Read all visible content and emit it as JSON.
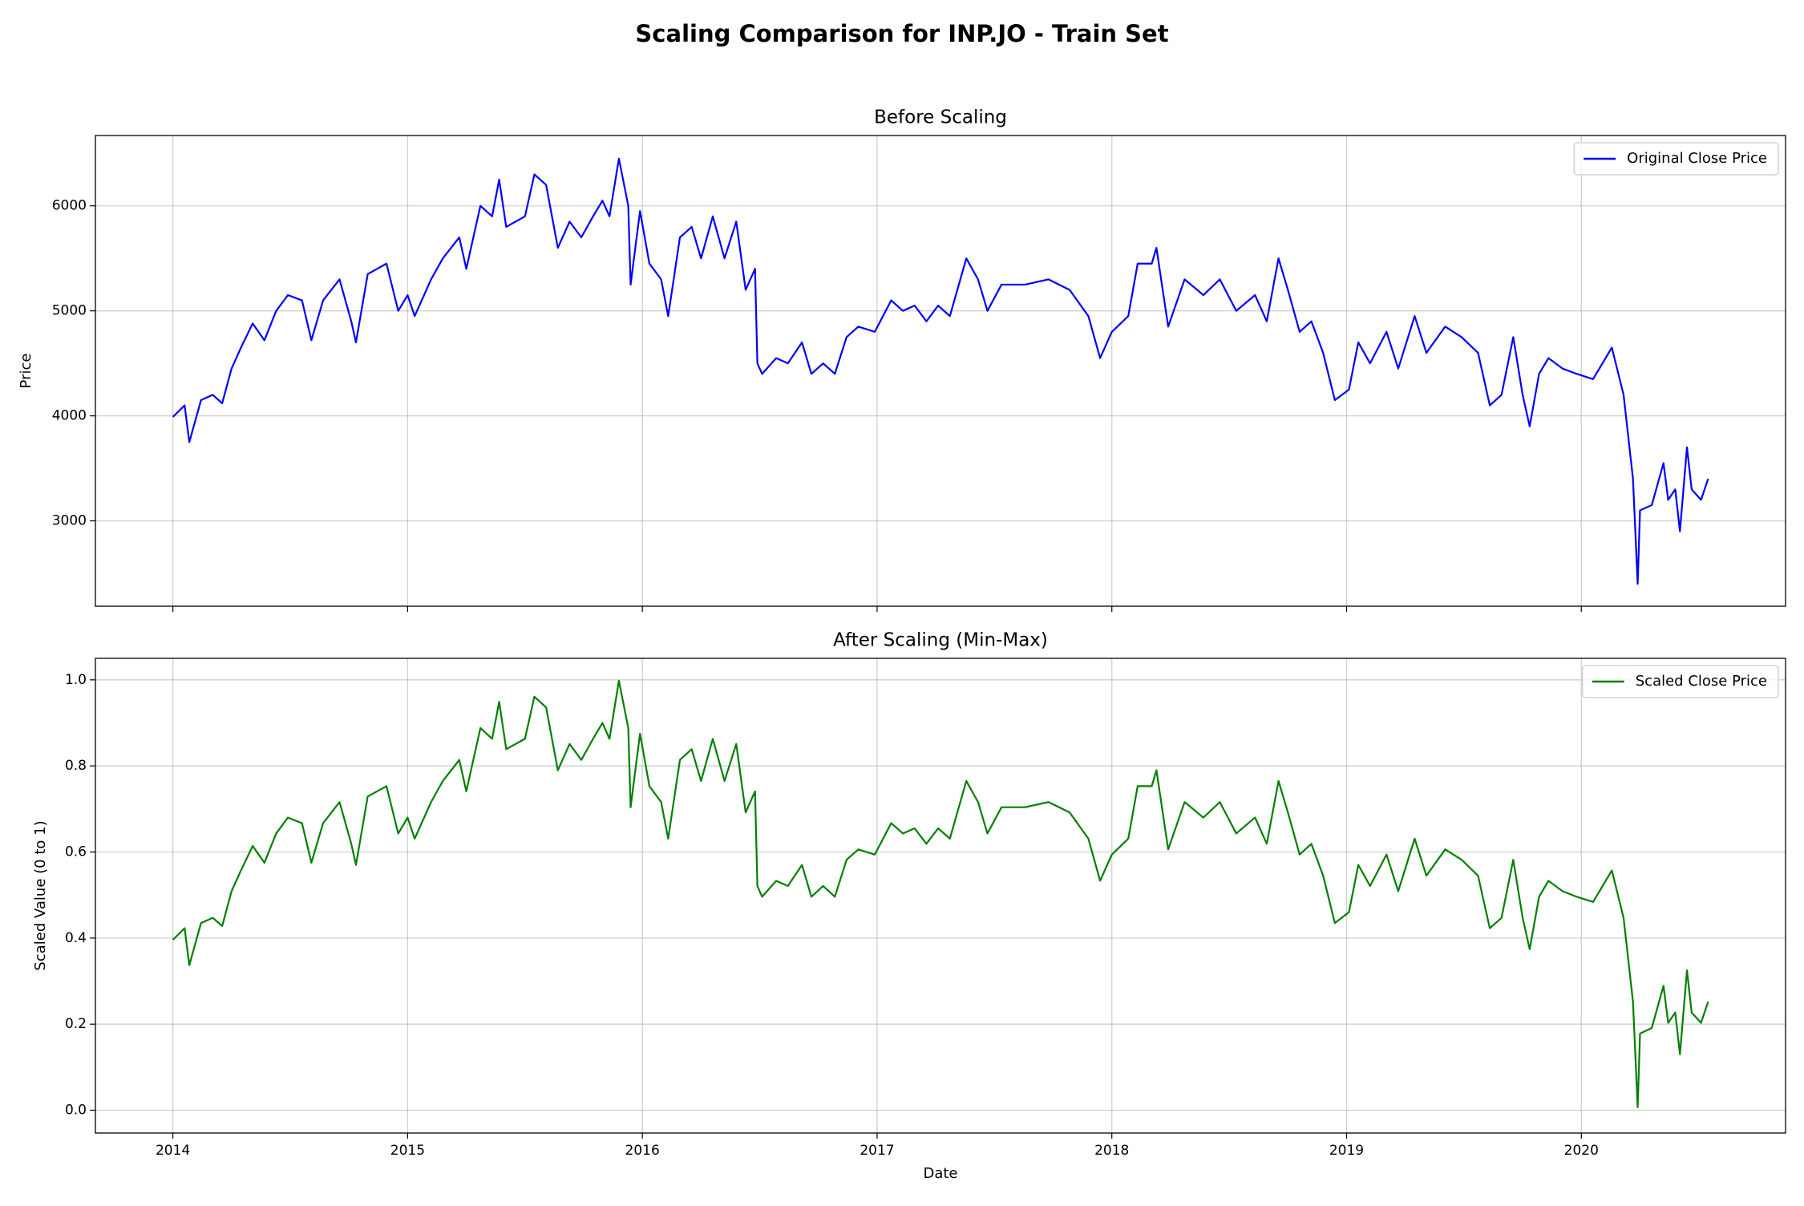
{
  "title": "Scaling Comparison for INP.JO - Train Set",
  "chart_data": [
    {
      "type": "line",
      "title": "Before Scaling",
      "ylabel": "Price",
      "x": [
        2014.0,
        2014.05,
        2014.07,
        2014.12,
        2014.17,
        2014.21,
        2014.25,
        2014.29,
        2014.34,
        2014.39,
        2014.44,
        2014.49,
        2014.55,
        2014.59,
        2014.64,
        2014.71,
        2014.76,
        2014.78,
        2014.83,
        2014.91,
        2014.96,
        2015.0,
        2015.03,
        2015.1,
        2015.15,
        2015.22,
        2015.25,
        2015.31,
        2015.36,
        2015.39,
        2015.42,
        2015.5,
        2015.54,
        2015.59,
        2015.64,
        2015.69,
        2015.74,
        2015.79,
        2015.83,
        2015.86,
        2015.9,
        2015.94,
        2015.95,
        2015.99,
        2016.03,
        2016.08,
        2016.11,
        2016.16,
        2016.21,
        2016.25,
        2016.3,
        2016.35,
        2016.4,
        2016.44,
        2016.48,
        2016.49,
        2016.51,
        2016.57,
        2016.62,
        2016.68,
        2016.72,
        2016.77,
        2016.82,
        2016.87,
        2016.92,
        2016.99,
        2017.06,
        2017.11,
        2017.16,
        2017.21,
        2017.26,
        2017.31,
        2017.38,
        2017.43,
        2017.47,
        2017.53,
        2017.63,
        2017.73,
        2017.82,
        2017.9,
        2017.95,
        2018.0,
        2018.07,
        2018.11,
        2018.17,
        2018.19,
        2018.24,
        2018.31,
        2018.39,
        2018.46,
        2018.53,
        2018.61,
        2018.66,
        2018.71,
        2018.75,
        2018.8,
        2018.85,
        2018.9,
        2018.95,
        2019.01,
        2019.05,
        2019.1,
        2019.17,
        2019.22,
        2019.29,
        2019.34,
        2019.42,
        2019.49,
        2019.56,
        2019.61,
        2019.66,
        2019.71,
        2019.75,
        2019.78,
        2019.82,
        2019.86,
        2019.92,
        2019.98,
        2020.05,
        2020.13,
        2020.18,
        2020.22,
        2020.24,
        2020.25,
        2020.3,
        2020.35,
        2020.37,
        2020.4,
        2020.42,
        2020.45,
        2020.47,
        2020.51,
        2020.54
      ],
      "series": [
        {
          "name": "Original Close Price",
          "color": "#0000ff",
          "values": [
            3990,
            4100,
            3750,
            4150,
            4200,
            4120,
            4450,
            4650,
            4880,
            4720,
            5000,
            5150,
            5100,
            4720,
            5100,
            5300,
            4900,
            4700,
            5350,
            5450,
            5000,
            5150,
            4950,
            5300,
            5500,
            5700,
            5400,
            6000,
            5900,
            6250,
            5800,
            5900,
            6300,
            6200,
            5600,
            5850,
            5700,
            5900,
            6050,
            5900,
            6450,
            6000,
            5250,
            5950,
            5450,
            5300,
            4950,
            5700,
            5800,
            5500,
            5900,
            5500,
            5850,
            5200,
            5400,
            4500,
            4400,
            4550,
            4500,
            4700,
            4400,
            4500,
            4400,
            4750,
            4850,
            4800,
            5100,
            5000,
            5050,
            4900,
            5050,
            4950,
            5500,
            5300,
            5000,
            5250,
            5250,
            5300,
            5200,
            4950,
            4550,
            4800,
            4950,
            5450,
            5450,
            5600,
            4850,
            5300,
            5150,
            5300,
            5000,
            5150,
            4900,
            5500,
            5200,
            4800,
            4900,
            4600,
            4150,
            4250,
            4700,
            4500,
            4800,
            4450,
            4950,
            4600,
            4850,
            4750,
            4600,
            4100,
            4200,
            4750,
            4200,
            3900,
            4400,
            4550,
            4450,
            4400,
            4350,
            4650,
            4200,
            3400,
            2400,
            3100,
            3150,
            3550,
            3200,
            3300,
            2900,
            3700,
            3300,
            3200,
            3400
          ]
        }
      ],
      "xlim": [
        2013.67,
        2020.87
      ],
      "xticks": [
        2014,
        2015,
        2016,
        2017,
        2018,
        2019,
        2020
      ],
      "ylim": [
        2187,
        6670
      ],
      "yticks": [
        3000,
        4000,
        5000,
        6000
      ],
      "grid": true,
      "legend": "upper right"
    },
    {
      "type": "line",
      "title": "After Scaling (Min-Max)",
      "ylabel": "Scaled Value (0 to 1)",
      "xlabel": "Date",
      "x": [
        2014.0,
        2014.05,
        2014.07,
        2014.12,
        2014.17,
        2014.21,
        2014.25,
        2014.29,
        2014.34,
        2014.39,
        2014.44,
        2014.49,
        2014.55,
        2014.59,
        2014.64,
        2014.71,
        2014.76,
        2014.78,
        2014.83,
        2014.91,
        2014.96,
        2015.0,
        2015.03,
        2015.1,
        2015.15,
        2015.22,
        2015.25,
        2015.31,
        2015.36,
        2015.39,
        2015.42,
        2015.5,
        2015.54,
        2015.59,
        2015.64,
        2015.69,
        2015.74,
        2015.79,
        2015.83,
        2015.86,
        2015.9,
        2015.94,
        2015.95,
        2015.99,
        2016.03,
        2016.08,
        2016.11,
        2016.16,
        2016.21,
        2016.25,
        2016.3,
        2016.35,
        2016.4,
        2016.44,
        2016.48,
        2016.49,
        2016.51,
        2016.57,
        2016.62,
        2016.68,
        2016.72,
        2016.77,
        2016.82,
        2016.87,
        2016.92,
        2016.99,
        2017.06,
        2017.11,
        2017.16,
        2017.21,
        2017.26,
        2017.31,
        2017.38,
        2017.43,
        2017.47,
        2017.53,
        2017.63,
        2017.73,
        2017.82,
        2017.9,
        2017.95,
        2018.0,
        2018.07,
        2018.11,
        2018.17,
        2018.19,
        2018.24,
        2018.31,
        2018.39,
        2018.46,
        2018.53,
        2018.61,
        2018.66,
        2018.71,
        2018.75,
        2018.8,
        2018.85,
        2018.9,
        2018.95,
        2019.01,
        2019.05,
        2019.1,
        2019.17,
        2019.22,
        2019.29,
        2019.34,
        2019.42,
        2019.49,
        2019.56,
        2019.61,
        2019.66,
        2019.71,
        2019.75,
        2019.78,
        2019.82,
        2019.86,
        2019.92,
        2019.98,
        2020.05,
        2020.13,
        2020.18,
        2020.22,
        2020.24,
        2020.25,
        2020.3,
        2020.35,
        2020.37,
        2020.4,
        2020.42,
        2020.45,
        2020.47,
        2020.51,
        2020.54
      ],
      "series": [
        {
          "name": "Scaled Close Price",
          "color": "#008000",
          "values": [
            0.396,
            0.423,
            0.337,
            0.435,
            0.447,
            0.428,
            0.509,
            0.557,
            0.614,
            0.575,
            0.643,
            0.68,
            0.667,
            0.575,
            0.667,
            0.716,
            0.619,
            0.57,
            0.729,
            0.753,
            0.643,
            0.68,
            0.631,
            0.716,
            0.765,
            0.814,
            0.741,
            0.888,
            0.863,
            0.949,
            0.839,
            0.863,
            0.961,
            0.936,
            0.79,
            0.851,
            0.814,
            0.863,
            0.9,
            0.863,
            0.998,
            0.888,
            0.704,
            0.875,
            0.753,
            0.716,
            0.631,
            0.814,
            0.839,
            0.765,
            0.863,
            0.765,
            0.851,
            0.692,
            0.741,
            0.521,
            0.496,
            0.533,
            0.521,
            0.57,
            0.496,
            0.521,
            0.496,
            0.582,
            0.606,
            0.594,
            0.667,
            0.643,
            0.655,
            0.619,
            0.655,
            0.631,
            0.765,
            0.716,
            0.643,
            0.704,
            0.704,
            0.716,
            0.692,
            0.631,
            0.533,
            0.594,
            0.631,
            0.753,
            0.753,
            0.79,
            0.606,
            0.716,
            0.68,
            0.716,
            0.643,
            0.68,
            0.619,
            0.765,
            0.692,
            0.594,
            0.619,
            0.545,
            0.435,
            0.46,
            0.57,
            0.521,
            0.594,
            0.509,
            0.631,
            0.545,
            0.606,
            0.582,
            0.545,
            0.423,
            0.447,
            0.582,
            0.447,
            0.374,
            0.496,
            0.533,
            0.509,
            0.496,
            0.484,
            0.557,
            0.447,
            0.252,
            0.007,
            0.178,
            0.191,
            0.289,
            0.203,
            0.227,
            0.13,
            0.325,
            0.227,
            0.203,
            0.252
          ]
        }
      ],
      "xlim": [
        2013.67,
        2020.87
      ],
      "xticks": [
        2014,
        2015,
        2016,
        2017,
        2018,
        2019,
        2020
      ],
      "ylim": [
        -0.053,
        1.05
      ],
      "yticks": [
        {
          "value": 0,
          "label": "0.0"
        },
        0.2,
        0.4,
        0.6,
        0.8,
        {
          "value": 1,
          "label": "1.0"
        }
      ],
      "grid": true,
      "legend": "upper right"
    }
  ]
}
